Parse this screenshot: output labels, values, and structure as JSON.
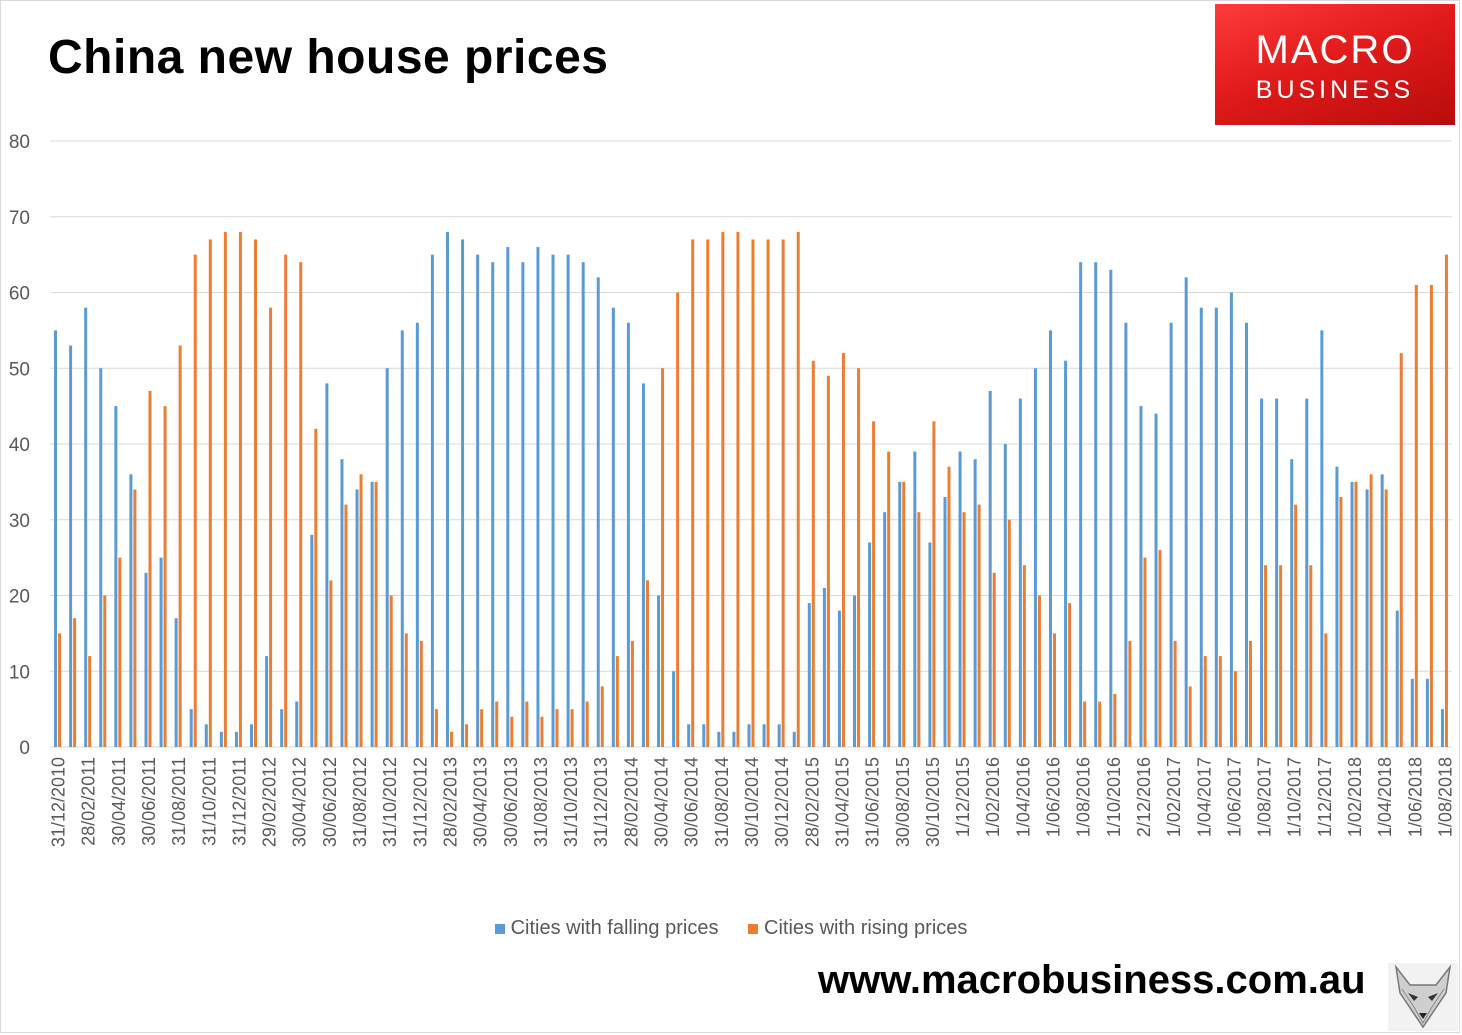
{
  "page": {
    "title": "China new house prices",
    "logo": {
      "line1": "MACRO",
      "line2": "BUSINESS"
    },
    "footer_url": "www.macrobusiness.com.au"
  },
  "colors": {
    "falling": "#5b9bd5",
    "rising": "#ed7d31",
    "grid": "#d9d9d9",
    "axis_text": "#595959",
    "logo_red": "#e21b1b"
  },
  "chart_data": {
    "type": "bar",
    "title": "China new house prices",
    "ylim": [
      0,
      80
    ],
    "yticks": [
      0,
      10,
      20,
      30,
      40,
      50,
      60,
      70,
      80
    ],
    "grid": true,
    "legend_position": "bottom",
    "x_tick_labels": [
      "31/12/2010",
      "28/02/2011",
      "30/04/2011",
      "30/06/2011",
      "31/08/2011",
      "31/10/2011",
      "31/12/2011",
      "29/02/2012",
      "30/04/2012",
      "30/06/2012",
      "31/08/2012",
      "31/10/2012",
      "31/12/2012",
      "28/02/2013",
      "30/04/2013",
      "30/06/2013",
      "31/08/2013",
      "31/10/2013",
      "31/12/2013",
      "28/02/2014",
      "30/04/2014",
      "30/06/2014",
      "31/08/2014",
      "30/10/2014",
      "30/12/2014",
      "28/02/2015",
      "31/04/2015",
      "31/06/2015",
      "30/08/2015",
      "30/10/2015",
      "1/12/2015",
      "1/02/2016",
      "1/04/2016",
      "1/06/2016",
      "1/08/2016",
      "1/10/2016",
      "2/12/2016",
      "1/02/2017",
      "1/04/2017",
      "1/06/2017",
      "1/08/2017",
      "1/10/2017",
      "1/12/2017",
      "1/02/2018",
      "1/04/2018",
      "1/06/2018",
      "1/08/2018"
    ],
    "series": [
      {
        "name": "Cities with falling prices",
        "values": [
          55,
          53,
          58,
          50,
          45,
          36,
          23,
          25,
          17,
          5,
          3,
          2,
          2,
          3,
          12,
          5,
          6,
          28,
          48,
          38,
          34,
          35,
          50,
          55,
          56,
          65,
          68,
          67,
          65,
          64,
          66,
          64,
          66,
          65,
          65,
          64,
          62,
          58,
          56,
          48,
          20,
          10,
          3,
          3,
          2,
          2,
          3,
          3,
          3,
          2,
          19,
          21,
          18,
          20,
          27,
          31,
          35,
          39,
          27,
          33,
          39,
          38,
          47,
          40,
          46,
          50,
          55,
          51,
          64,
          64,
          63,
          56,
          45,
          44,
          56,
          62,
          58,
          58,
          60,
          56,
          46,
          46,
          38,
          46,
          55,
          37,
          35,
          34,
          36,
          18,
          9,
          9,
          5
        ]
      },
      {
        "name": "Cities with rising prices",
        "values": [
          15,
          17,
          12,
          20,
          25,
          34,
          47,
          45,
          53,
          65,
          67,
          68,
          68,
          67,
          58,
          65,
          64,
          42,
          22,
          32,
          36,
          35,
          20,
          15,
          14,
          5,
          2,
          3,
          5,
          6,
          4,
          6,
          4,
          5,
          5,
          6,
          8,
          12,
          14,
          22,
          50,
          60,
          67,
          67,
          68,
          68,
          67,
          67,
          67,
          68,
          51,
          49,
          52,
          50,
          43,
          39,
          35,
          31,
          43,
          37,
          31,
          32,
          23,
          30,
          24,
          20,
          15,
          19,
          6,
          6,
          7,
          14,
          25,
          26,
          14,
          8,
          12,
          12,
          10,
          14,
          24,
          24,
          32,
          24,
          15,
          33,
          35,
          36,
          34,
          52,
          61,
          61,
          65
        ]
      }
    ]
  }
}
